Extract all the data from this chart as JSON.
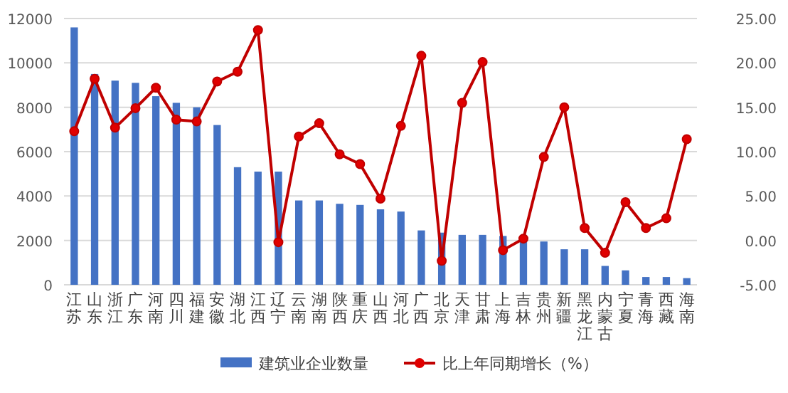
{
  "chart_data": {
    "type": "bar",
    "categories": [
      "江苏",
      "山东",
      "浙江",
      "广东",
      "河南",
      "四川",
      "福建",
      "安徽",
      "湖北",
      "江西",
      "辽宁",
      "云南",
      "湖南",
      "陕西",
      "重庆",
      "山西",
      "河北",
      "广西",
      "北京",
      "天津",
      "甘肃",
      "上海",
      "吉林",
      "贵州",
      "新疆",
      "黑龙江",
      "内蒙古",
      "宁夏",
      "青海",
      "西藏",
      "海南"
    ],
    "series": [
      {
        "name": "建筑业企业数量",
        "color": "#4472c4",
        "values": [
          11600,
          9500,
          9200,
          9100,
          8500,
          8200,
          8000,
          7200,
          5300,
          5100,
          5100,
          3800,
          3800,
          3650,
          3600,
          3400,
          3300,
          2450,
          2350,
          2250,
          2250,
          2200,
          2000,
          1950,
          1600,
          1600,
          850,
          650,
          350,
          350,
          300
        ]
      },
      {
        "name": "比上年同期增长（%）",
        "type": "line",
        "axis": "y2",
        "color": "#c00000",
        "values": [
          12.3,
          18.2,
          12.7,
          14.9,
          17.2,
          13.6,
          13.4,
          17.9,
          19.0,
          23.7,
          -0.2,
          11.7,
          13.2,
          9.7,
          8.6,
          4.7,
          12.9,
          20.8,
          -2.3,
          15.5,
          20.1,
          -1.1,
          0.2,
          9.4,
          15.0,
          1.4,
          -1.4,
          4.3,
          1.4,
          2.5,
          11.4
        ]
      }
    ],
    "ylim": [
      0,
      12000
    ],
    "yticks": [
      0,
      2000,
      4000,
      6000,
      8000,
      10000,
      12000
    ],
    "y2lim": [
      -5,
      25
    ],
    "y2ticks": [
      {
        "value": -5,
        "label": "-5.00"
      },
      {
        "value": 0,
        "label": "0.00"
      },
      {
        "value": 5,
        "label": "5.00"
      },
      {
        "value": 10,
        "label": "10.00"
      },
      {
        "value": 15,
        "label": "15.00"
      },
      {
        "value": 20,
        "label": "20.00"
      },
      {
        "value": 25,
        "label": "25.00"
      }
    ],
    "grid": "y",
    "legend": "bottom",
    "marker": "circle",
    "line_style": "solid"
  }
}
